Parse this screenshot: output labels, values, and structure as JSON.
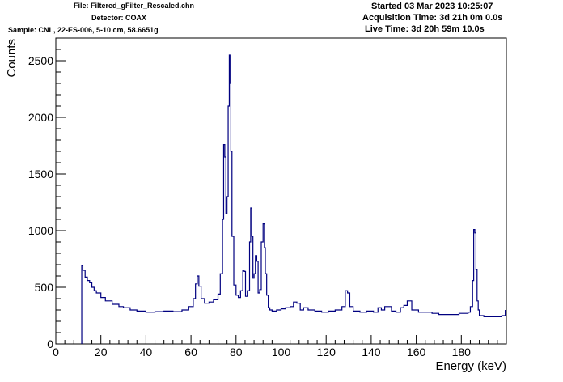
{
  "header": {
    "file_line": "File: Filtered_gFilter_Rescaled.chn",
    "detector_line": "Detector: COAX",
    "sample_line": "Sample: CNL, 22-ES-006, 5-10 cm, 58.6651g",
    "started_line": "Started 03 Mar 2023 10:25:07",
    "acq_line": "Acquisition Time: 3d 21h 0m 0.0s",
    "live_line": "Live Time: 3d 20h 59m 10.0s"
  },
  "colors": {
    "spectrum": "#000080",
    "axes": "#000000",
    "background": "#ffffff"
  },
  "chart_data": {
    "type": "line",
    "xlabel": "Energy (keV)",
    "ylabel": "Counts",
    "xlim": [
      0,
      200
    ],
    "ylim": [
      0,
      2700
    ],
    "x_ticks": [
      0,
      20,
      40,
      60,
      80,
      100,
      120,
      140,
      160,
      180
    ],
    "y_ticks": [
      0,
      500,
      1000,
      1500,
      2000,
      2500
    ],
    "grid": false,
    "legend": "none",
    "series": [
      {
        "x": [
          11.5,
          12,
          13,
          14,
          15,
          16,
          17,
          18,
          20,
          22,
          25,
          28,
          30,
          33,
          36,
          40,
          44,
          48,
          52,
          56,
          59,
          61,
          62,
          62.8,
          63.5,
          64.5,
          66,
          68,
          70,
          72,
          73,
          74,
          74.5,
          75,
          75.5,
          76,
          76.5,
          77,
          77.3,
          77.7,
          78.2,
          79,
          80,
          81,
          82,
          83,
          83.6,
          84.2,
          85,
          86,
          86.5,
          87,
          87.5,
          88,
          88.6,
          89.2,
          89.8,
          90.5,
          91.2,
          92,
          92.6,
          93,
          93.6,
          94.3,
          95,
          96,
          98,
          100,
          102,
          104,
          105.5,
          107,
          108.5,
          110,
          112,
          115,
          118,
          121,
          124,
          127,
          128.5,
          129.5,
          130.5,
          132,
          135,
          138,
          141,
          143,
          144.5,
          146,
          149,
          151,
          153,
          154.5,
          156,
          158,
          161,
          164,
          167,
          170,
          173,
          176,
          179,
          181,
          183,
          184,
          185,
          185.5,
          186,
          186.5,
          187,
          187.5,
          188,
          190,
          193,
          196,
          198,
          199.5
        ],
        "y": [
          690,
          650,
          590,
          560,
          540,
          500,
          470,
          450,
          410,
          380,
          350,
          330,
          320,
          300,
          290,
          280,
          285,
          290,
          285,
          300,
          330,
          400,
          530,
          600,
          510,
          400,
          360,
          370,
          390,
          440,
          620,
          1100,
          1760,
          1650,
          1150,
          1300,
          2100,
          2550,
          2300,
          1700,
          950,
          520,
          430,
          410,
          470,
          650,
          640,
          420,
          470,
          900,
          1200,
          950,
          580,
          620,
          780,
          730,
          450,
          480,
          900,
          1060,
          850,
          620,
          430,
          320,
          300,
          290,
          300,
          310,
          320,
          330,
          370,
          360,
          300,
          320,
          300,
          290,
          280,
          290,
          300,
          330,
          470,
          450,
          330,
          290,
          280,
          290,
          280,
          320,
          300,
          330,
          290,
          280,
          320,
          340,
          380,
          300,
          280,
          280,
          270,
          260,
          260,
          260,
          270,
          270,
          280,
          330,
          560,
          1010,
          980,
          660,
          380,
          300,
          250,
          240,
          240,
          240,
          250,
          300
        ]
      }
    ]
  }
}
